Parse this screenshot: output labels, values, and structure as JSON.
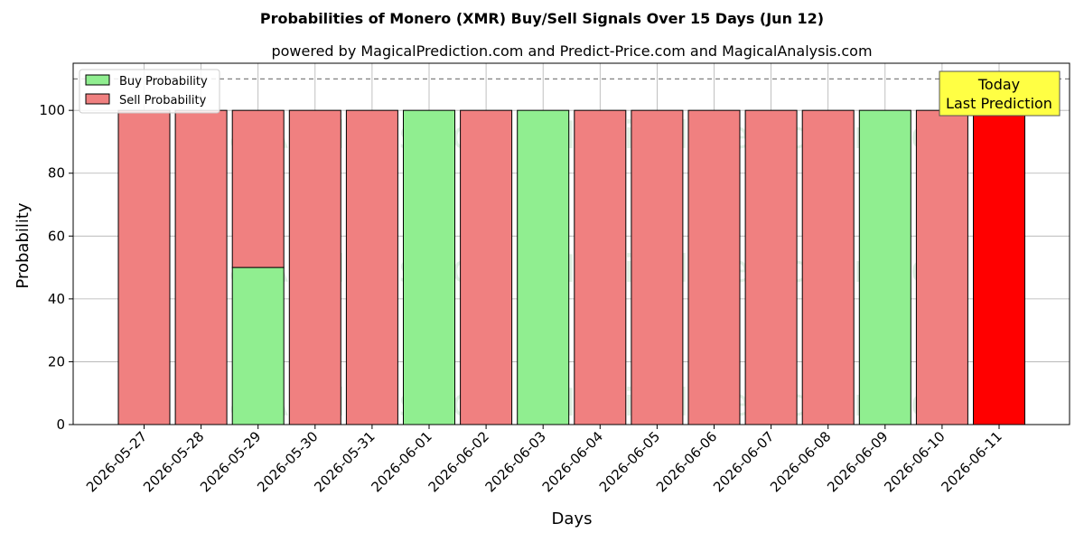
{
  "chart_data": {
    "type": "bar",
    "stacked": true,
    "title": "Probabilities of Monero (XMR) Buy/Sell Signals Over 15 Days (Jun 12)",
    "subtitle": "powered by MagicalPrediction.com and Predict-Price.com and MagicalAnalysis.com",
    "xlabel": "Days",
    "ylabel": "Probability",
    "ylim": [
      0,
      115
    ],
    "yticks": [
      0,
      20,
      40,
      60,
      80,
      100
    ],
    "grid": true,
    "legend_position": "top-left",
    "categories": [
      "2026-05-27",
      "2026-05-28",
      "2026-05-29",
      "2026-05-30",
      "2026-05-31",
      "2026-06-01",
      "2026-06-02",
      "2026-06-03",
      "2026-06-04",
      "2026-06-05",
      "2026-06-06",
      "2026-06-07",
      "2026-06-08",
      "2026-06-09",
      "2026-06-10",
      "2026-06-11"
    ],
    "series": [
      {
        "name": "Buy Probability",
        "color": "#90ee90",
        "values": [
          0,
          0,
          50,
          0,
          0,
          100,
          0,
          100,
          0,
          0,
          0,
          0,
          0,
          100,
          0,
          0
        ]
      },
      {
        "name": "Sell Probability",
        "color": "#f08080",
        "values": [
          100,
          100,
          50,
          100,
          100,
          0,
          100,
          0,
          100,
          100,
          100,
          100,
          100,
          0,
          100,
          100
        ]
      }
    ],
    "highlight": {
      "index": 15,
      "color": "#ff0000"
    },
    "reference_line": {
      "y": 110,
      "style": "dashed",
      "color": "#808080"
    },
    "annotation": {
      "lines": [
        "Today",
        "Last Prediction"
      ],
      "background": "#ffff44"
    },
    "watermarks": [
      "MagicalAnalysis.com",
      "MagicalPrediction.com"
    ]
  }
}
